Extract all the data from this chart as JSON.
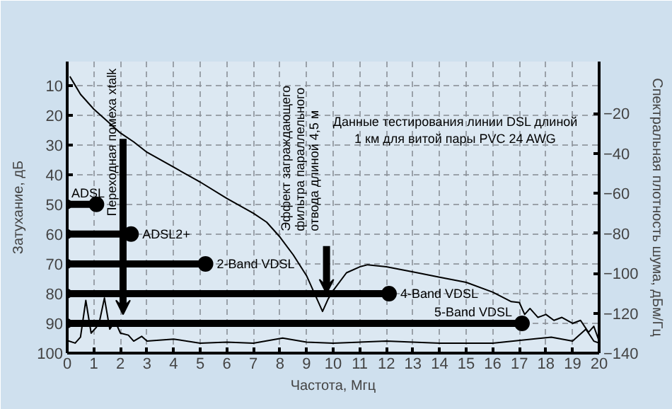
{
  "chart_data": {
    "type": "line",
    "title": "Данные тестирования линии DSL длиной 1 км для витой пары PVC 24 AWG",
    "xlabel": "Частота, Мгц",
    "ylabel": "Затухание, дБ",
    "y2label": "Спектральная плотность шума, дБм/Гц",
    "xlim": [
      0,
      20
    ],
    "xticks": [
      0,
      1,
      2,
      3,
      4,
      5,
      6,
      7,
      8,
      9,
      10,
      11,
      12,
      13,
      14,
      15,
      16,
      17,
      18,
      19,
      20
    ],
    "ylim": [
      100,
      2
    ],
    "yticks": [
      10,
      20,
      30,
      40,
      50,
      60,
      70,
      80,
      90,
      100
    ],
    "y2lim": [
      -140,
      6
    ],
    "y2ticks": [
      -20,
      -40,
      -60,
      -80,
      -100,
      -120,
      -140
    ],
    "grid": true,
    "series": [
      {
        "color": "#000000",
        "x": [
          0.1,
          0.3,
          0.5,
          1,
          1.5,
          2,
          2.5,
          3,
          4,
          5,
          6,
          7,
          7.5,
          8,
          8.5,
          9,
          9.3,
          9.6,
          9.8,
          10,
          10.5,
          11,
          11.3,
          12,
          13,
          14,
          15,
          16,
          16.7,
          17,
          17.2,
          17.4,
          17.7,
          18,
          18.3,
          18.6,
          19,
          19.3,
          19.6,
          19.8,
          20
        ],
        "values": [
          7,
          10,
          13,
          18,
          22,
          26,
          29,
          32.5,
          37.5,
          42.5,
          48,
          53,
          56,
          61,
          67,
          74,
          80,
          86,
          82,
          79,
          73,
          71,
          70.3,
          71,
          72.7,
          74.5,
          76.2,
          79.5,
          82.7,
          83,
          87,
          85,
          88,
          87,
          89,
          88,
          90,
          89,
          93,
          91,
          96
        ]
      },
      {
        "axis": "y2",
        "color": "#000000",
        "x": [
          0,
          0.3,
          0.5,
          0.7,
          0.9,
          1.1,
          1.2,
          1.4,
          1.6,
          1.8,
          2.0,
          2.3,
          2.5,
          2.8,
          3,
          4,
          5,
          6,
          7,
          8.1,
          9,
          10,
          12,
          14,
          16,
          18.2,
          19,
          19.5,
          19.8,
          20
        ],
        "values": [
          -133.7,
          -135,
          -132,
          -113.6,
          -130,
          -127,
          -125,
          -112.4,
          -128,
          -124,
          -130,
          -131,
          -134,
          -131.6,
          -134,
          -133,
          -135,
          -134.5,
          -135,
          -132.5,
          -134.5,
          -135,
          -134,
          -135,
          -135,
          -132,
          -134,
          -128,
          -134,
          -135
        ]
      },
      {
        "type": "line",
        "marker": "circle",
        "name": "ADSL",
        "color": "#000000",
        "x": [
          0,
          1.1
        ],
        "values": [
          50,
          50
        ]
      },
      {
        "type": "line",
        "marker": "circle",
        "name": "ADSL2+",
        "color": "#000000",
        "x": [
          0,
          2.4
        ],
        "values": [
          60,
          60
        ]
      },
      {
        "type": "line",
        "marker": "circle",
        "name": "2-Band VDSL",
        "color": "#000000",
        "x": [
          0,
          5.2
        ],
        "values": [
          70,
          70
        ]
      },
      {
        "type": "line",
        "marker": "circle",
        "name": "4-Band VDSL",
        "color": "#000000",
        "x": [
          0,
          12.1
        ],
        "values": [
          80,
          80
        ]
      },
      {
        "type": "line",
        "marker": "circle",
        "name": "5-Band VDSL",
        "color": "#000000",
        "x": [
          0,
          17.1
        ],
        "values": [
          90,
          90
        ]
      }
    ],
    "annotations": [
      {
        "text": "Переходная помеха xtalk",
        "x": 2.1,
        "y": 87
      },
      {
        "text": "Эффект заграждающего фильтра параллельного отвода длиной 4,5 м",
        "x": 9.75,
        "y": 80
      }
    ]
  }
}
